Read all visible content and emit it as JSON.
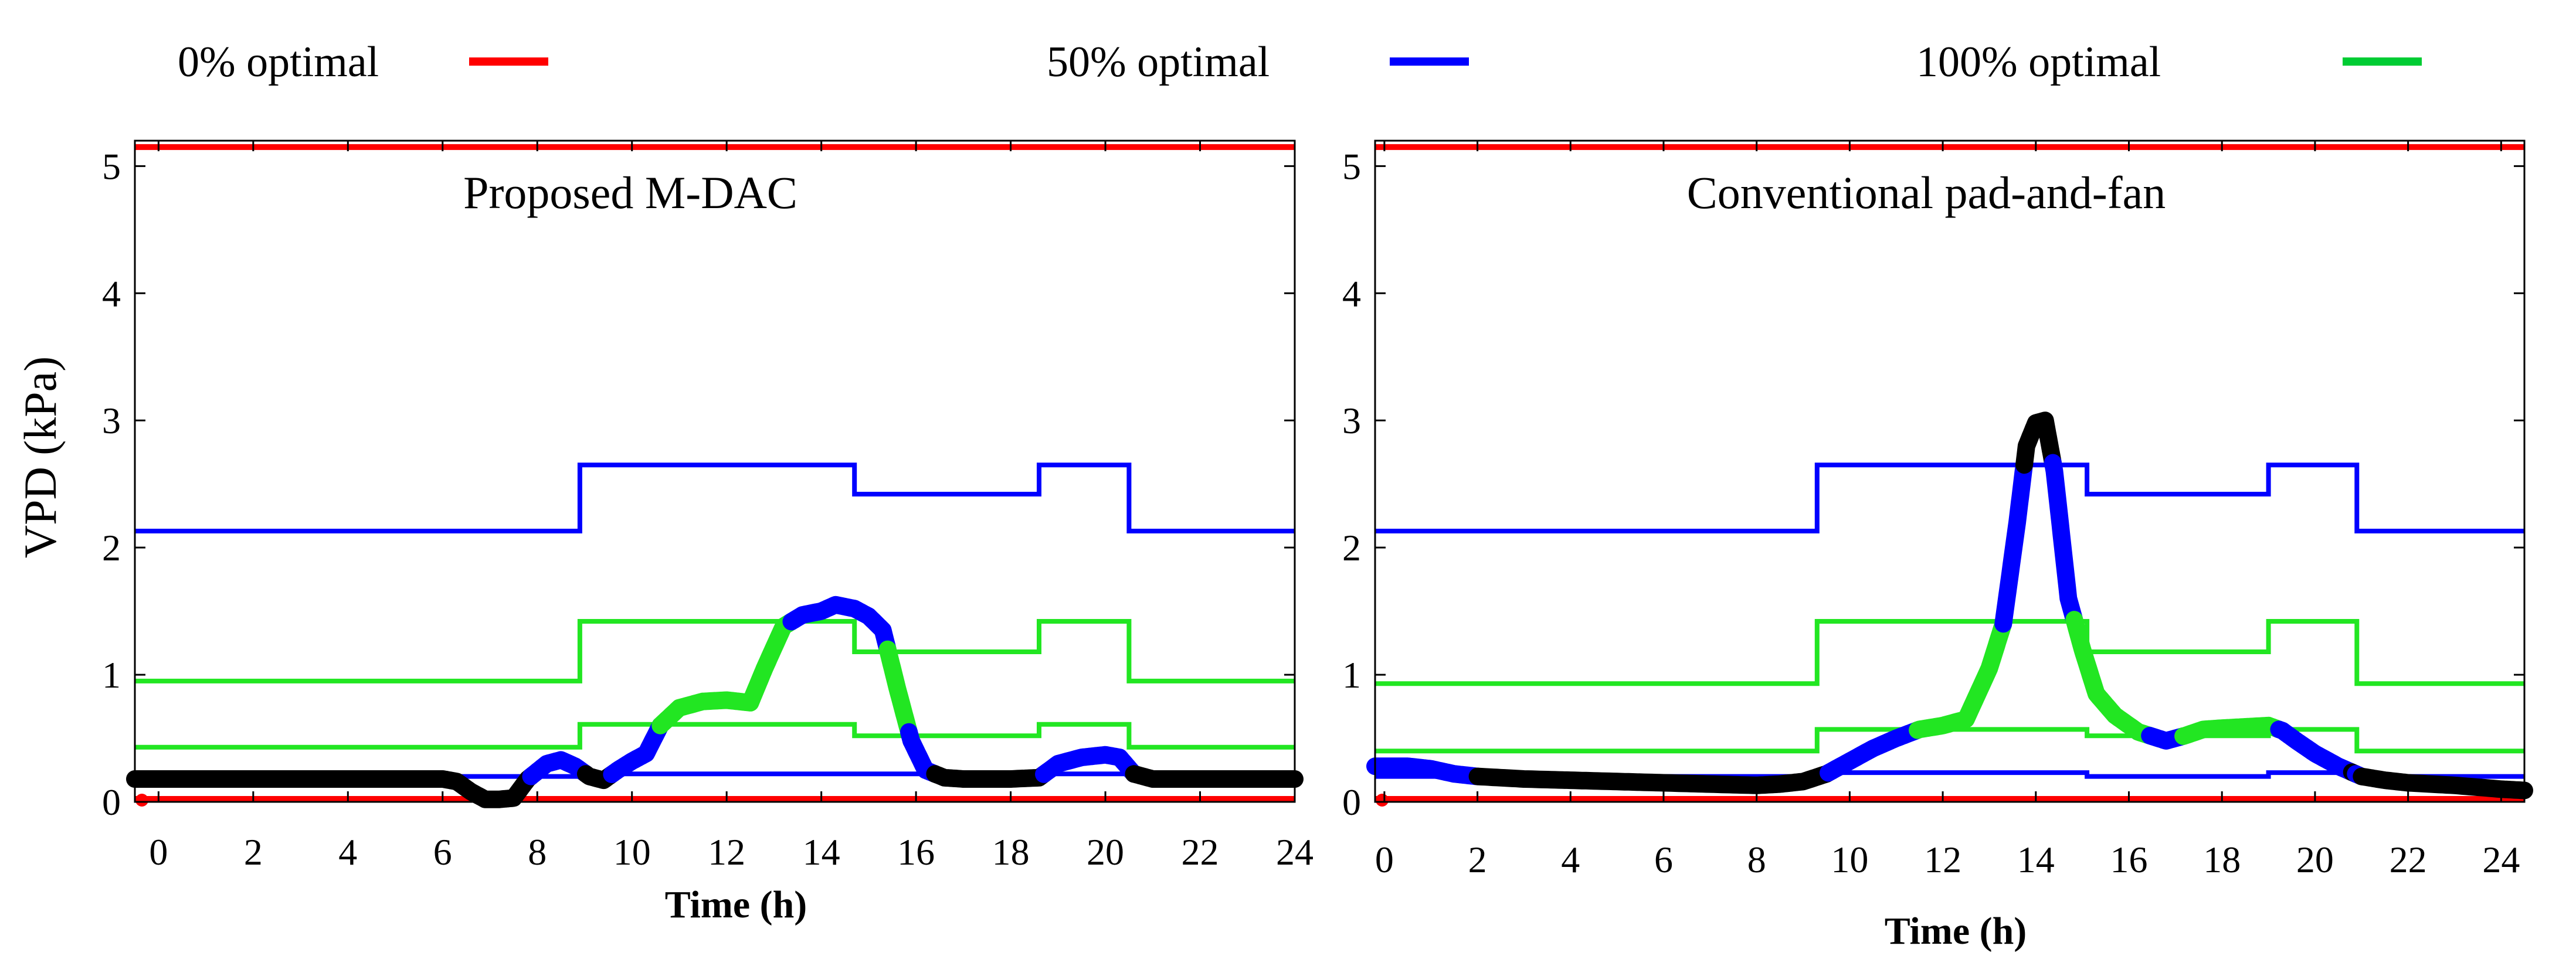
{
  "legend": [
    {
      "label": "0% optimal",
      "color": "#ff0000"
    },
    {
      "label": "50% optimal",
      "color": "#0000ff"
    },
    {
      "label": "100% optimal",
      "color": "#00cc33"
    }
  ],
  "colors": {
    "optimal_0": "#ff0000",
    "optimal_50": "#0000ff",
    "optimal_100": "#22e622",
    "outside": "#000000"
  },
  "chart_data": [
    {
      "type": "line",
      "title": "Proposed M-DAC",
      "xlabel": "Time (h)",
      "ylabel": "VPD (kPa)",
      "xlim": [
        -0.5,
        24
      ],
      "ylim": [
        0,
        5.2
      ],
      "xticks": [
        0,
        2,
        4,
        6,
        8,
        10,
        12,
        14,
        16,
        18,
        20,
        22,
        24
      ],
      "yticks": [
        0,
        1,
        2,
        3,
        4,
        5
      ],
      "bounds": {
        "red_lower": 0,
        "red_upper": 5.15,
        "blue_upper": {
          "x": [
            -0.5,
            8.9,
            8.9,
            14.7,
            14.7,
            18.6,
            18.6,
            20.5,
            20.5,
            24
          ],
          "y": [
            2.13,
            2.13,
            2.65,
            2.65,
            2.42,
            2.42,
            2.65,
            2.65,
            2.13,
            2.13
          ]
        },
        "green_upper": {
          "x": [
            -0.5,
            8.9,
            8.9,
            14.7,
            14.7,
            18.6,
            18.6,
            20.5,
            20.5,
            24
          ],
          "y": [
            0.95,
            0.95,
            1.42,
            1.42,
            1.18,
            1.18,
            1.42,
            1.42,
            0.95,
            0.95
          ]
        },
        "green_lower": {
          "x": [
            -0.5,
            8.9,
            8.9,
            14.7,
            14.7,
            18.6,
            18.6,
            20.5,
            20.5,
            24
          ],
          "y": [
            0.43,
            0.43,
            0.61,
            0.61,
            0.52,
            0.52,
            0.61,
            0.61,
            0.43,
            0.43
          ]
        },
        "blue_lower": {
          "x": [
            -0.5,
            8.9,
            8.9,
            24
          ],
          "y": [
            0.2,
            0.2,
            0.22,
            0.22
          ]
        }
      },
      "series": {
        "x": [
          -0.5,
          0,
          1,
          2,
          3,
          4,
          5,
          6,
          6.3,
          6.6,
          6.9,
          7.2,
          7.5,
          7.8,
          8.2,
          8.5,
          8.8,
          9.1,
          9.4,
          9.7,
          10.0,
          10.3,
          10.6,
          11.0,
          11.5,
          12.0,
          12.5,
          12.8,
          13.2,
          13.6,
          14.0,
          14.3,
          14.7,
          15.0,
          15.3,
          15.6,
          15.9,
          16.2,
          16.6,
          17.0,
          18.0,
          18.6,
          19.0,
          19.5,
          20.0,
          20.3,
          20.6,
          21,
          22,
          23,
          24
        ],
        "y": [
          0.18,
          0.18,
          0.18,
          0.18,
          0.18,
          0.18,
          0.18,
          0.18,
          0.16,
          0.08,
          0.02,
          0.02,
          0.03,
          0.18,
          0.3,
          0.33,
          0.28,
          0.2,
          0.17,
          0.25,
          0.32,
          0.38,
          0.6,
          0.74,
          0.79,
          0.8,
          0.78,
          1.05,
          1.38,
          1.47,
          1.5,
          1.55,
          1.52,
          1.46,
          1.35,
          0.9,
          0.48,
          0.25,
          0.19,
          0.18,
          0.18,
          0.19,
          0.3,
          0.35,
          0.37,
          0.35,
          0.22,
          0.18,
          0.18,
          0.18,
          0.18
        ]
      }
    },
    {
      "type": "line",
      "title": "Conventional pad-and-fan",
      "xlabel": "Time (h)",
      "ylabel": "",
      "xlim": [
        -0.2,
        24.5
      ],
      "ylim": [
        0,
        5.2
      ],
      "xticks": [
        0,
        2,
        4,
        6,
        8,
        10,
        12,
        14,
        16,
        18,
        20,
        22,
        24
      ],
      "yticks": [
        0,
        1,
        2,
        3,
        4,
        5
      ],
      "bounds": {
        "red_lower": 0,
        "red_upper": 5.15,
        "blue_upper": {
          "x": [
            -0.2,
            9.3,
            9.3,
            15.1,
            15.1,
            19.0,
            19.0,
            20.9,
            20.9,
            24.5
          ],
          "y": [
            2.13,
            2.13,
            2.65,
            2.65,
            2.42,
            2.42,
            2.65,
            2.65,
            2.13,
            2.13
          ]
        },
        "green_upper": {
          "x": [
            -0.2,
            9.3,
            9.3,
            15.1,
            15.1,
            19.0,
            19.0,
            20.9,
            20.9,
            24.5
          ],
          "y": [
            0.93,
            0.93,
            1.42,
            1.42,
            1.18,
            1.18,
            1.42,
            1.42,
            0.93,
            0.93
          ]
        },
        "green_lower": {
          "x": [
            -0.2,
            9.3,
            9.3,
            15.1,
            15.1,
            19.0,
            19.0,
            20.9,
            20.9,
            24.5
          ],
          "y": [
            0.4,
            0.4,
            0.57,
            0.57,
            0.52,
            0.52,
            0.57,
            0.57,
            0.4,
            0.4
          ]
        },
        "blue_lower": {
          "x": [
            -0.2,
            9.3,
            9.3,
            15.1,
            15.1,
            19.0,
            19.0,
            20.9,
            20.9,
            24.5
          ],
          "y": [
            0.2,
            0.2,
            0.23,
            0.23,
            0.2,
            0.2,
            0.23,
            0.23,
            0.2,
            0.2
          ]
        }
      },
      "series": {
        "x": [
          -0.2,
          0.5,
          1.0,
          1.5,
          2,
          3,
          4,
          5,
          6,
          7,
          8,
          8.5,
          9.0,
          9.5,
          10.0,
          10.5,
          11.0,
          11.5,
          12.0,
          12.5,
          13.0,
          13.3,
          13.6,
          13.8,
          14.0,
          14.2,
          14.4,
          14.7,
          15.0,
          15.3,
          15.7,
          16.2,
          16.8,
          17.2,
          17.6,
          18.0,
          18.5,
          19.0,
          19.3,
          19.6,
          20.0,
          20.5,
          21.0,
          21.5,
          22.0,
          23.0,
          24.0,
          24.5
        ],
        "y": [
          0.28,
          0.28,
          0.26,
          0.22,
          0.2,
          0.18,
          0.17,
          0.16,
          0.15,
          0.14,
          0.13,
          0.14,
          0.16,
          0.22,
          0.32,
          0.42,
          0.5,
          0.57,
          0.6,
          0.65,
          1.05,
          1.4,
          2.2,
          2.8,
          2.98,
          3.0,
          2.6,
          1.6,
          1.2,
          0.85,
          0.68,
          0.55,
          0.48,
          0.52,
          0.57,
          0.58,
          0.59,
          0.6,
          0.56,
          0.48,
          0.38,
          0.28,
          0.2,
          0.17,
          0.15,
          0.13,
          0.1,
          0.09
        ]
      }
    }
  ]
}
